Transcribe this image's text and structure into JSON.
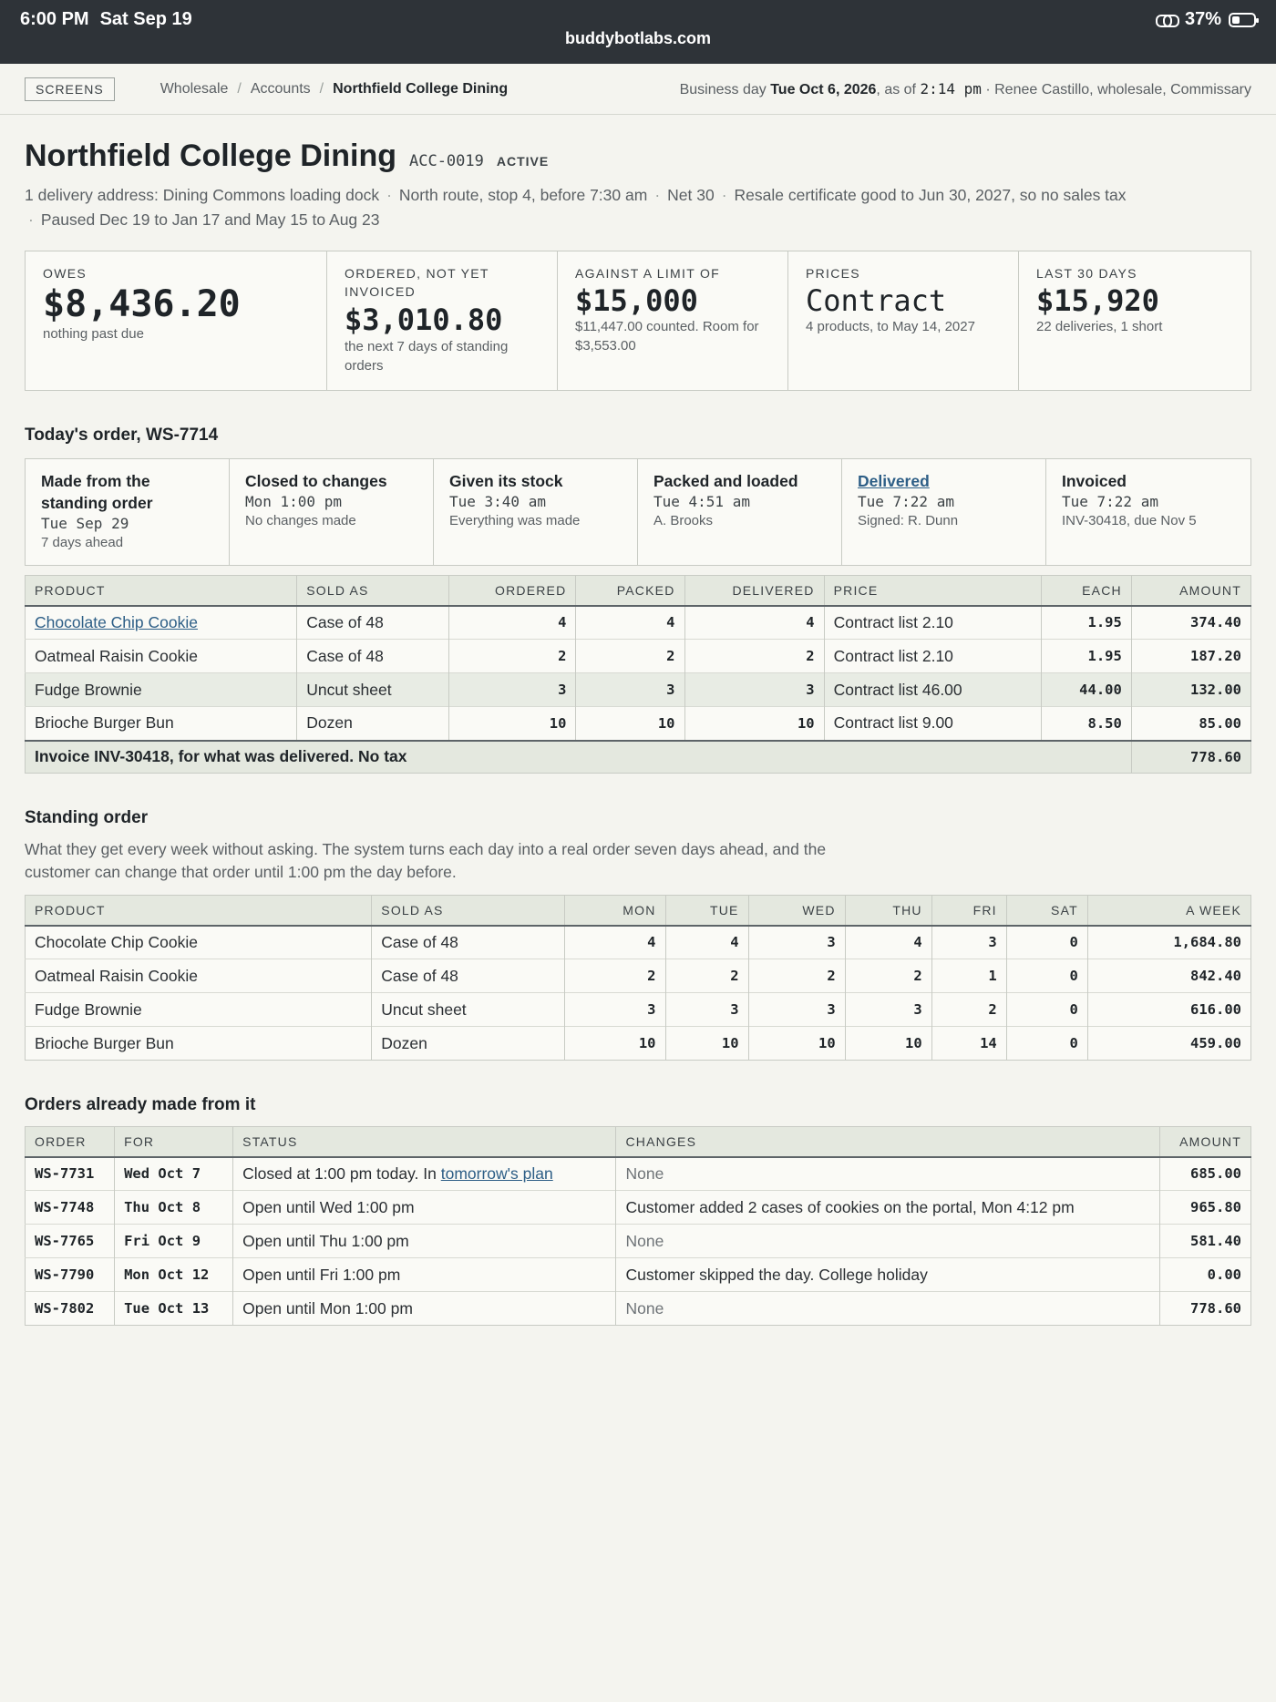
{
  "status_bar": {
    "time": "6:00 PM",
    "date": "Sat Sep 19",
    "url": "buddybotlabs.com",
    "battery": "37%",
    "battery_level": 0.37
  },
  "nav": {
    "screens_label": "SCREENS",
    "breadcrumb": [
      "Wholesale",
      "Accounts",
      "Northfield College Dining"
    ],
    "business_day_prefix": "Business day",
    "business_day": "Tue Oct 6, 2026",
    "as_of_prefix": ", as of",
    "as_of_time": "2:14 pm",
    "user_info": "· Renee Castillo, wholesale, Commissary"
  },
  "account": {
    "name": "Northfield College Dining",
    "code": "ACC-0019",
    "status": "ACTIVE",
    "meta": [
      "1 delivery address: Dining Commons loading dock",
      "North route, stop 4, before 7:30 am",
      "Net 30",
      "Resale certificate good to Jun 30, 2027, so no sales tax",
      "Paused Dec 19 to Jan 17 and May 15 to Aug 23"
    ]
  },
  "cards": [
    {
      "label": "OWES",
      "value": "$8,436.20",
      "sub": "nothing past due"
    },
    {
      "label": "ORDERED, NOT YET INVOICED",
      "value": "$3,010.80",
      "sub": "the next 7 days of standing orders"
    },
    {
      "label": "AGAINST A LIMIT OF",
      "value": "$15,000",
      "sub": "$11,447.00 counted. Room for $3,553.00"
    },
    {
      "label": "PRICES",
      "value": "Contract",
      "sub": "4 products, to May 14, 2027"
    },
    {
      "label": "LAST 30 DAYS",
      "value": "$15,920",
      "sub": "22 deliveries, 1 short"
    }
  ],
  "todays_order": {
    "title": "Today's order, WS-7714",
    "steps": [
      {
        "title": "Made from the standing order",
        "when": "Tue Sep 29",
        "note": "7 days ahead"
      },
      {
        "title": "Closed to changes",
        "when": "Mon 1:00 pm",
        "note": "No changes made"
      },
      {
        "title": "Given its stock",
        "when": "Tue 3:40 am",
        "note": "Everything was made"
      },
      {
        "title": "Packed and loaded",
        "when": "Tue 4:51 am",
        "note": "A. Brooks"
      },
      {
        "title": "Delivered",
        "when": "Tue 7:22 am",
        "note": "Signed: R. Dunn"
      },
      {
        "title": "Invoiced",
        "when": "Tue 7:22 am",
        "note": "INV-30418, due Nov 5"
      }
    ],
    "headers": [
      "PRODUCT",
      "SOLD AS",
      "ORDERED",
      "PACKED",
      "DELIVERED",
      "PRICE",
      "EACH",
      "AMOUNT"
    ],
    "rows": [
      {
        "product": "Chocolate Chip Cookie",
        "sold_as": "Case of 48",
        "ordered": "4",
        "packed": "4",
        "delivered": "4",
        "price": "Contract list 2.10",
        "each": "1.95",
        "amount": "374.40"
      },
      {
        "product": "Oatmeal Raisin Cookie",
        "sold_as": "Case of 48",
        "ordered": "2",
        "packed": "2",
        "delivered": "2",
        "price": "Contract list 2.10",
        "each": "1.95",
        "amount": "187.20"
      },
      {
        "product": "Fudge Brownie",
        "sold_as": "Uncut sheet",
        "ordered": "3",
        "packed": "3",
        "delivered": "3",
        "price": "Contract list 46.00",
        "each": "44.00",
        "amount": "132.00"
      },
      {
        "product": "Brioche Burger Bun",
        "sold_as": "Dozen",
        "ordered": "10",
        "packed": "10",
        "delivered": "10",
        "price": "Contract list 9.00",
        "each": "8.50",
        "amount": "85.00"
      }
    ],
    "total_label": "Invoice INV-30418, for what was delivered. No tax",
    "total_amount": "778.60"
  },
  "standing_order": {
    "title": "Standing order",
    "description": "What they get every week without asking. The system turns each day into a real order seven days ahead, and the customer can change that order until 1:00 pm the day before.",
    "headers": [
      "PRODUCT",
      "SOLD AS",
      "MON",
      "TUE",
      "WED",
      "THU",
      "FRI",
      "SAT",
      "A WEEK"
    ],
    "rows": [
      {
        "product": "Chocolate Chip Cookie",
        "sold_as": "Case of 48",
        "mon": "4",
        "tue": "4",
        "wed": "3",
        "thu": "4",
        "fri": "3",
        "sat": "0",
        "week": "1,684.80"
      },
      {
        "product": "Oatmeal Raisin Cookie",
        "sold_as": "Case of 48",
        "mon": "2",
        "tue": "2",
        "wed": "2",
        "thu": "2",
        "fri": "1",
        "sat": "0",
        "week": "842.40"
      },
      {
        "product": "Fudge Brownie",
        "sold_as": "Uncut sheet",
        "mon": "3",
        "tue": "3",
        "wed": "3",
        "thu": "3",
        "fri": "2",
        "sat": "0",
        "week": "616.00"
      },
      {
        "product": "Brioche Burger Bun",
        "sold_as": "Dozen",
        "mon": "10",
        "tue": "10",
        "wed": "10",
        "thu": "10",
        "fri": "14",
        "sat": "0",
        "week": "459.00"
      }
    ]
  },
  "orders_made": {
    "title": "Orders already made from it",
    "headers": [
      "ORDER",
      "FOR",
      "STATUS",
      "CHANGES",
      "AMOUNT"
    ],
    "rows": [
      {
        "order": "WS-7731",
        "for": "Wed Oct 7",
        "status": "Closed at 1:00 pm today. In ",
        "status_link": "tomorrow's plan",
        "changes": "None",
        "amount": "685.00"
      },
      {
        "order": "WS-7748",
        "for": "Thu Oct 8",
        "status": "Open until Wed 1:00 pm",
        "status_link": "",
        "changes": "Customer added 2 cases of cookies on the portal, Mon 4:12 pm",
        "amount": "965.80"
      },
      {
        "order": "WS-7765",
        "for": "Fri Oct 9",
        "status": "Open until Thu 1:00 pm",
        "status_link": "",
        "changes": "None",
        "amount": "581.40"
      },
      {
        "order": "WS-7790",
        "for": "Mon Oct 12",
        "status": "Open until Fri 1:00 pm",
        "status_link": "",
        "changes": "Customer skipped the day. College holiday",
        "amount": "0.00"
      },
      {
        "order": "WS-7802",
        "for": "Tue Oct 13",
        "status": "Open until Mon 1:00 pm",
        "status_link": "",
        "changes": "None",
        "amount": "778.60"
      }
    ]
  }
}
